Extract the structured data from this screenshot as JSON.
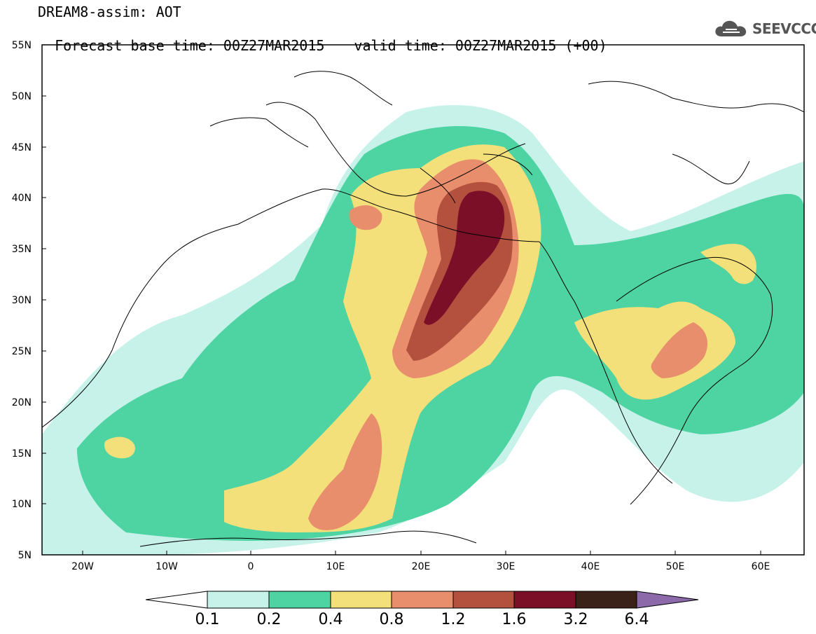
{
  "header": {
    "title": "DREAM8-assim: AOT",
    "base_time": "Forecast base time: 00Z27MAR2015",
    "valid_time": "valid time: 00Z27MAR2015 (+00)"
  },
  "logo": {
    "text": "SEEVCCC",
    "icon": "cloud-icon"
  },
  "map": {
    "lat_labels": [
      "55N",
      "50N",
      "45N",
      "40N",
      "35N",
      "30N",
      "25N",
      "20N",
      "15N",
      "10N",
      "5N"
    ],
    "lon_labels": [
      "20W",
      "10W",
      "0",
      "10E",
      "20E",
      "30E",
      "40E",
      "50E",
      "60E"
    ]
  },
  "colorbar": {
    "levels": [
      "0.1",
      "0.2",
      "0.4",
      "0.8",
      "1.2",
      "1.6",
      "3.2",
      "6.4"
    ],
    "colors": [
      "#ffffff",
      "#c6f2ea",
      "#4ed3a2",
      "#f3e07a",
      "#e88e6c",
      "#b3503e",
      "#7c0f28",
      "#3b2218",
      "#8c6aa9"
    ]
  }
}
